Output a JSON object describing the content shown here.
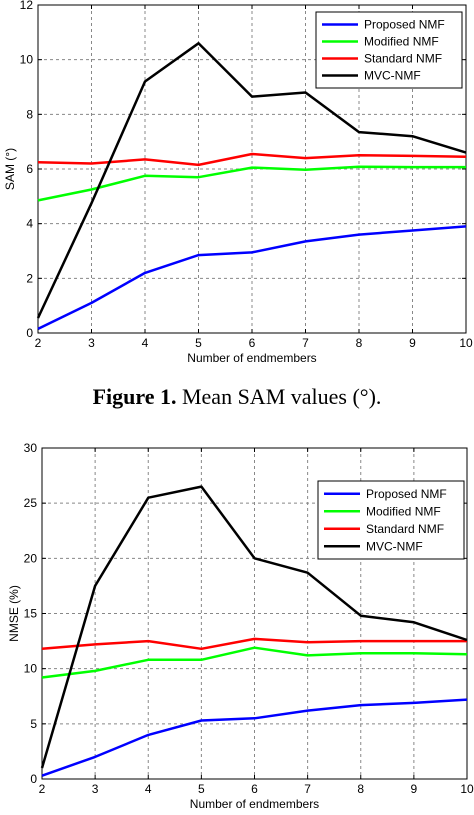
{
  "chart_data": [
    {
      "type": "line",
      "xlabel": "Number of endmembers",
      "ylabel": "SAM (°)",
      "x": [
        2,
        3,
        4,
        5,
        6,
        7,
        8,
        9,
        10
      ],
      "xlim": [
        2,
        10
      ],
      "ylim": [
        0,
        12
      ],
      "yticks": [
        0,
        2,
        4,
        6,
        8,
        10,
        12
      ],
      "grid": true,
      "legend": "top-right",
      "series": [
        {
          "name": "Proposed NMF",
          "color": "#0000ff",
          "values": [
            0.15,
            1.1,
            2.2,
            2.85,
            2.95,
            3.35,
            3.6,
            3.75,
            3.9
          ]
        },
        {
          "name": "Modified NMF",
          "color": "#00ff00",
          "values": [
            4.85,
            5.25,
            5.75,
            5.7,
            6.05,
            5.97,
            6.08,
            6.07,
            6.07
          ]
        },
        {
          "name": "Standard NMF",
          "color": "#ff0000",
          "values": [
            6.25,
            6.2,
            6.35,
            6.15,
            6.55,
            6.4,
            6.5,
            6.48,
            6.45
          ]
        },
        {
          "name": "MVC-NMF",
          "color": "#000000",
          "values": [
            0.55,
            4.75,
            9.2,
            10.6,
            8.65,
            8.8,
            7.35,
            7.2,
            6.6
          ]
        }
      ]
    },
    {
      "type": "line",
      "xlabel": "Number of endmembers",
      "ylabel": "NMSE (%)",
      "x": [
        2,
        3,
        4,
        5,
        6,
        7,
        8,
        9,
        10
      ],
      "xlim": [
        2,
        10
      ],
      "ylim": [
        0,
        30
      ],
      "yticks": [
        0,
        5,
        10,
        15,
        20,
        25,
        30
      ],
      "grid": true,
      "legend": "top-right",
      "series": [
        {
          "name": "Proposed NMF",
          "color": "#0000ff",
          "values": [
            0.3,
            2.0,
            4.0,
            5.3,
            5.5,
            6.2,
            6.7,
            6.9,
            7.2
          ]
        },
        {
          "name": "Modified NMF",
          "color": "#00ff00",
          "values": [
            9.2,
            9.8,
            10.8,
            10.8,
            11.9,
            11.2,
            11.4,
            11.4,
            11.3
          ]
        },
        {
          "name": "Standard NMF",
          "color": "#ff0000",
          "values": [
            11.8,
            12.2,
            12.5,
            11.8,
            12.7,
            12.4,
            12.5,
            12.5,
            12.5
          ]
        },
        {
          "name": "MVC-NMF",
          "color": "#000000",
          "values": [
            1.0,
            17.5,
            25.5,
            26.5,
            20.0,
            18.7,
            14.8,
            14.2,
            12.6
          ]
        }
      ]
    }
  ],
  "caption": {
    "label": "Figure 1.",
    "text": " Mean SAM values (°)."
  }
}
